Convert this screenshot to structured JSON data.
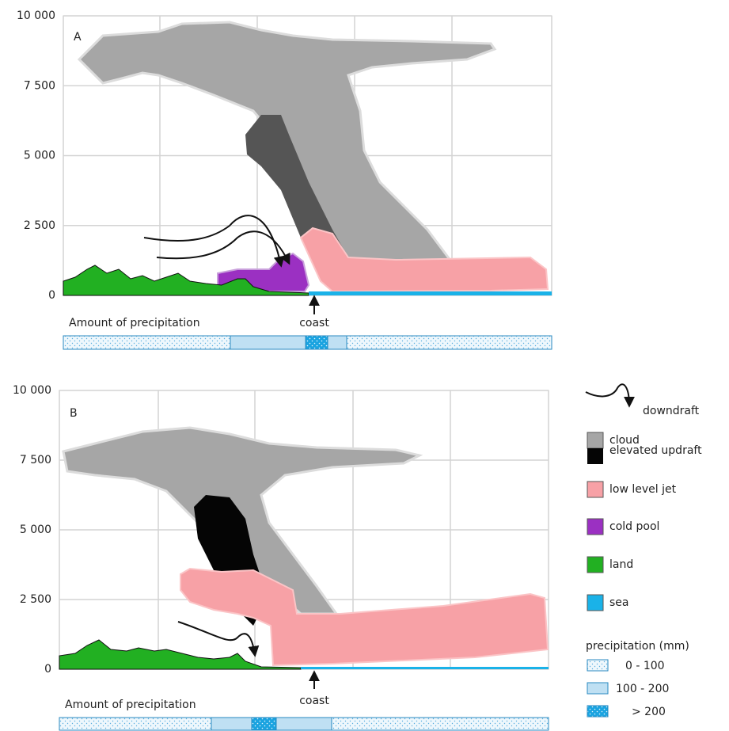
{
  "panels": [
    {
      "label": "A",
      "ylim": [
        0,
        10000
      ],
      "yticks": [
        0,
        {
          "value": 2500,
          "label": "2 500"
        },
        {
          "value": 5000,
          "label": "5 000"
        },
        {
          "value": 7500,
          "label": "7 500"
        },
        {
          "value": 10000,
          "label": "10 000"
        }
      ],
      "precipitation_label": "Amount of precipitation",
      "coast_label": "coast"
    },
    {
      "label": "B",
      "ylim": [
        0,
        10000
      ],
      "yticks": [
        0,
        {
          "value": 2500,
          "label": "2 500"
        },
        {
          "value": 5000,
          "label": "5 000"
        },
        {
          "value": 7500,
          "label": "7 500"
        },
        {
          "value": 10000,
          "label": "10 000"
        }
      ],
      "precipitation_label": "Amount of precipitation",
      "coast_label": "coast"
    }
  ],
  "legend": {
    "items": [
      "downdraft",
      "cloud",
      "elevated updraft",
      "low level jet",
      "cold pool",
      "land",
      "sea"
    ],
    "precipitation_title": "precipitation (mm)",
    "precipitation_items": [
      "0 - 100",
      "100 - 200",
      "> 200"
    ]
  }
}
